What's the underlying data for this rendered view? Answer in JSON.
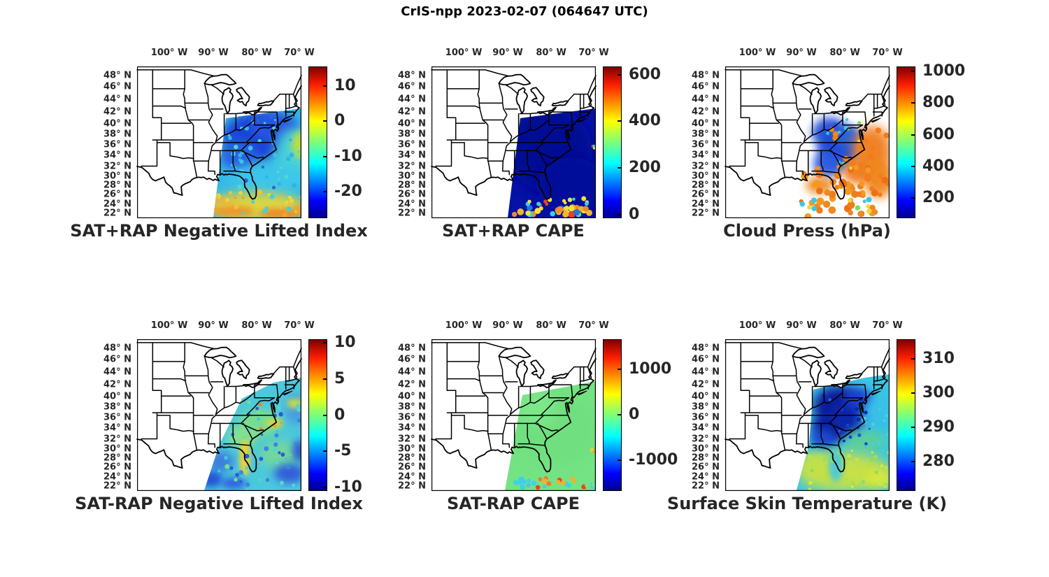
{
  "figure_title": "CrIS-npp 2023-02-07 (064647 UTC)",
  "axes": {
    "lon_tick_labels": [
      "100° W",
      "90° W",
      "80° W",
      "70° W"
    ],
    "lat_tick_labels": [
      "48° N",
      "46° N",
      "44° N",
      "42° N",
      "40° N",
      "38° N",
      "36° N",
      "34° N",
      "32° N",
      "30° N",
      "28° N",
      "26° N",
      "24° N",
      "22° N"
    ],
    "lon_ticks_deg_W": [
      100,
      90,
      80,
      70
    ],
    "lat_ticks_deg_N": [
      48,
      46,
      44,
      42,
      40,
      38,
      36,
      34,
      32,
      30,
      28,
      26,
      24,
      22
    ],
    "map_extent": {
      "lon_W": [
        108,
        70
      ],
      "lat_N": [
        22,
        49.5
      ]
    }
  },
  "colormap": "jet",
  "chart_data": [
    {
      "type": "heatmap",
      "title": "SAT+RAP Negative Lifted Index",
      "colorbar_ticks": [
        10,
        0,
        -10,
        -20
      ],
      "colorbar_range": [
        -27.5,
        15.5
      ],
      "legend_position": "right",
      "description": "Satellite sounding swath over the eastern US and western Atlantic: values near -15 to -20 (blue) over the Mid-Atlantic and Appalachians, near -8 (cyan) over the western Atlantic, rising to about -2 to 0 (yellow/orange) south of 30N."
    },
    {
      "type": "heatmap",
      "title": "SAT+RAP CAPE",
      "colorbar_ticks": [
        600,
        400,
        200,
        0
      ],
      "colorbar_range": [
        -15,
        635
      ],
      "legend_position": "right",
      "description": "CAPE near 0 J/kg (dark blue) across almost the entire swath; scattered 100-600 values (cyan/yellow/red speckles) along the southern swath edge near 22-24N."
    },
    {
      "type": "heatmap",
      "title": "Cloud Press (hPa)",
      "colorbar_ticks": [
        1000,
        800,
        600,
        400,
        200
      ],
      "colorbar_range": [
        74,
        1030
      ],
      "legend_position": "right",
      "description": "Cloud-top pressure: 150-400 hPa (blue) over the inland Mid-Atlantic/Southeast cloud shield; 700-900 hPa (orange) broken low cloud over the Atlantic, Florida and Gulf with scattered clear gaps and a few yellow/green/cyan points near the southern edge."
    },
    {
      "type": "heatmap",
      "title": "SAT-RAP Negative Lifted Index",
      "colorbar_ticks": [
        10,
        5,
        0,
        -5,
        -10
      ],
      "colorbar_range": [
        -10.5,
        10.5
      ],
      "legend_position": "right",
      "description": "Satellite minus RAP lifted-index difference: mostly -2 to +1 (cyan/green) over the Southeast and Atlantic; patches near -5 (blue) at the southern and eastern swath edges; +3 to +5 (yellow) streak along the Florida peninsula."
    },
    {
      "type": "heatmap",
      "title": "SAT-RAP CAPE",
      "colorbar_ticks": [
        1000,
        0,
        -1000
      ],
      "colorbar_range": [
        -1680,
        1660
      ],
      "legend_position": "right",
      "description": "Satellite minus RAP CAPE difference: approximately 0 (green) over nearly the whole swath; alternating -500 to +1500 (cyan to orange/red) streaks along the southern edge near 22-24N."
    },
    {
      "type": "heatmap",
      "title": "Surface Skin Temperature (K)",
      "colorbar_ticks": [
        310,
        300,
        290,
        280
      ],
      "colorbar_range": [
        271.4,
        315.8
      ],
      "legend_position": "right",
      "description": "Skin temperature: 272-280 K (dark blue) over the Mid-Atlantic and Appalachians, 285-292 K (cyan) over the adjacent Atlantic, 295-300 K (yellow-green) over Florida, the Gulf and the subtropical Atlantic."
    }
  ]
}
